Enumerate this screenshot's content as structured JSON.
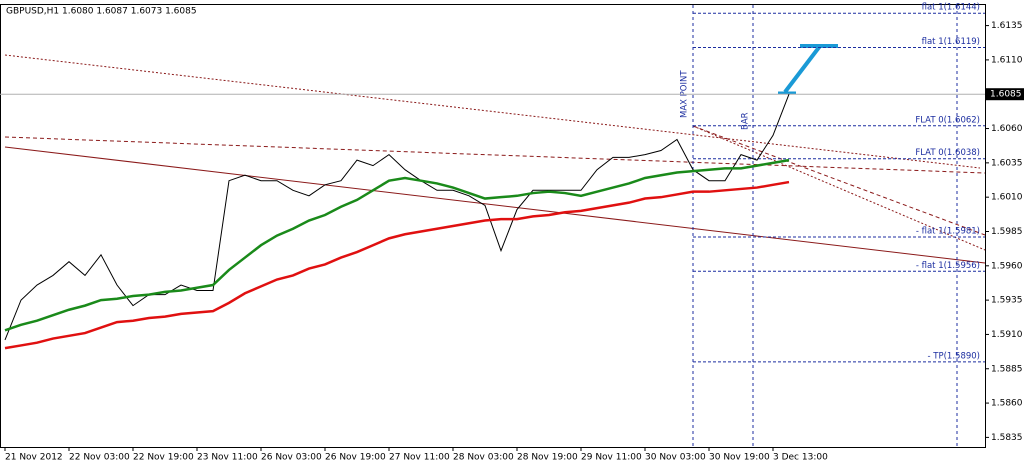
{
  "chart_data": {
    "type": "line",
    "title": "GBPUSD,H1  1.6080 1.6087 1.6073 1.6085",
    "categories": [
      "21 Nov 2012",
      null,
      null,
      null,
      "22 Nov 03:00",
      null,
      null,
      null,
      "22 Nov 19:00",
      null,
      null,
      null,
      "23 Nov 11:00",
      null,
      null,
      null,
      "26 Nov 03:00",
      null,
      null,
      null,
      "26 Nov 19:00",
      null,
      null,
      null,
      "27 Nov 11:00",
      null,
      null,
      null,
      "28 Nov 03:00",
      null,
      null,
      null,
      "28 Nov 19:00",
      null,
      null,
      null,
      "29 Nov 11:00",
      null,
      null,
      null,
      "30 Nov 03:00",
      null,
      null,
      null,
      "30 Nov 19:00",
      null,
      null,
      null,
      "3 Dec 13:00",
      null
    ],
    "series": [
      {
        "color": "#000000",
        "values": [
          1.5906,
          1.5935,
          1.5946,
          1.5953,
          1.5963,
          1.5953,
          1.5968,
          1.5946,
          1.5931,
          1.5939,
          1.5939,
          1.5946,
          1.5942,
          1.5942,
          1.6022,
          1.6026,
          1.6022,
          1.6022,
          1.6015,
          1.6011,
          1.6019,
          1.6022,
          1.6037,
          1.6033,
          1.6041,
          1.603,
          1.6022,
          1.6015,
          1.6015,
          1.6011,
          1.6004,
          1.5971,
          1.6001,
          1.6015,
          1.6015,
          1.6015,
          1.6015,
          1.603,
          1.6039,
          1.6039,
          1.6041,
          1.6044,
          1.6052,
          1.603,
          1.6022,
          1.6022,
          1.6041,
          1.6037,
          1.6055,
          1.6085
        ]
      },
      {
        "color": "#1a8a1a",
        "values": [
          1.5913,
          1.5917,
          1.592,
          1.5924,
          1.5928,
          1.5931,
          1.5935,
          1.5936,
          1.5938,
          1.5939,
          1.5941,
          1.5942,
          1.5944,
          1.5946,
          1.5957,
          1.5966,
          1.5975,
          1.5982,
          1.5987,
          1.5993,
          1.5997,
          1.6003,
          1.6008,
          1.6015,
          1.6022,
          1.6024,
          1.6022,
          1.602,
          1.6017,
          1.6013,
          1.6009,
          1.601,
          1.6011,
          1.6013,
          1.6014,
          1.6013,
          1.6011,
          1.6014,
          1.6017,
          1.602,
          1.6024,
          1.6026,
          1.6028,
          1.6029,
          1.603,
          1.6031,
          1.6031,
          1.6033,
          1.6035,
          1.6037
        ]
      },
      {
        "color": "#e01010",
        "values": [
          1.59,
          1.5902,
          1.5904,
          1.5907,
          1.5909,
          1.5911,
          1.5915,
          1.5919,
          1.592,
          1.5922,
          1.5923,
          1.5925,
          1.5926,
          1.5927,
          1.5933,
          1.594,
          1.5945,
          1.595,
          1.5953,
          1.5958,
          1.5961,
          1.5966,
          1.597,
          1.5975,
          1.598,
          1.5983,
          1.5985,
          1.5987,
          1.5989,
          1.5991,
          1.5993,
          1.5994,
          1.5994,
          1.5996,
          1.5997,
          1.5999,
          1.6,
          1.6002,
          1.6004,
          1.6006,
          1.6009,
          1.601,
          1.6012,
          1.6014,
          1.6014,
          1.6015,
          1.6016,
          1.6017,
          1.6019,
          1.6021
        ]
      }
    ],
    "ylim": [
      1.5828,
      1.615
    ],
    "yticks": [
      1.6135,
      {
        "value": 1.611,
        "label": "1.6110"
      },
      {
        "value": 1.606,
        "label": "1.6060"
      },
      1.6035,
      {
        "value": 1.601,
        "label": "1.6010"
      },
      1.5985,
      {
        "value": 1.596,
        "label": "1.5960"
      },
      1.5935,
      {
        "value": 1.591,
        "label": "1.5910"
      },
      1.5885,
      {
        "value": 1.586,
        "label": "1.5860"
      },
      1.5835
    ],
    "current_price": 1.6085,
    "levels": [
      {
        "value": 1.6144,
        "label": "flat 1(1.6144)"
      },
      {
        "value": 1.6119,
        "label": "flat 1(1.6119)"
      },
      {
        "value": 1.6062,
        "label": "FLAT 0(1.6062)"
      },
      {
        "value": 1.6038,
        "label": "FLAT 0(1.6038)"
      },
      {
        "value": 1.5981,
        "label": "- flat 1(1.5981)"
      },
      {
        "value": 1.5956,
        "label": "- flat 1(1.5956)"
      },
      {
        "value": 1.589,
        "label": "- TP(1.5890)"
      }
    ],
    "annotations": [
      "MAX POINT",
      "BAR"
    ]
  }
}
